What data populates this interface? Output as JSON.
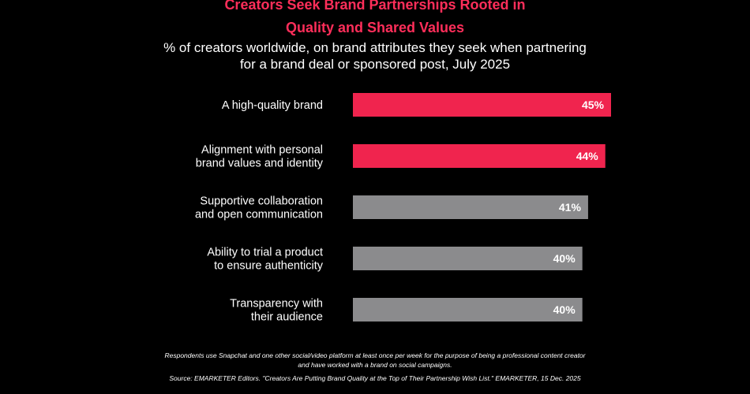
{
  "title_line1": "Creators Seek Brand Partnerships Rooted in",
  "title_line2": "Quality and Shared Values",
  "subtitle_line1": "% of creators worldwide, on brand attributes they seek when partnering",
  "subtitle_line2": "for a brand deal or sponsored post, July 2025",
  "colors": {
    "background": "#000000",
    "highlight": "#f0244e",
    "neutral": "#8b8b8d",
    "title": "#ff2e5a"
  },
  "chart_data": {
    "type": "bar",
    "orientation": "horizontal",
    "categories": [
      [
        "A high-quality brand"
      ],
      [
        "Alignment with personal",
        "brand values and identity"
      ],
      [
        "Supportive collaboration",
        "and open communication"
      ],
      [
        "Ability to trial a product",
        "to ensure authenticity"
      ],
      [
        "Transparency with",
        "their audience"
      ]
    ],
    "values": [
      45,
      44,
      41,
      40,
      40
    ],
    "value_labels": [
      "45%",
      "44%",
      "41%",
      "40%",
      "40%"
    ],
    "highlighted": [
      true,
      true,
      false,
      false,
      false
    ],
    "unit": "%",
    "grid": false,
    "xlim": [
      0,
      45
    ]
  },
  "footnote": {
    "line1": "Respondents use Snapchat and one other social/video platform at least once per week for the purpose of being a professional content creator",
    "line2": "and have worked with a brand on social campaigns.",
    "source": "Source: EMARKETER Editors. \"Creators Are Putting Brand Quality at the Top of Their Partnership Wish List.\" EMARKETER, 15 Dec. 2025"
  }
}
